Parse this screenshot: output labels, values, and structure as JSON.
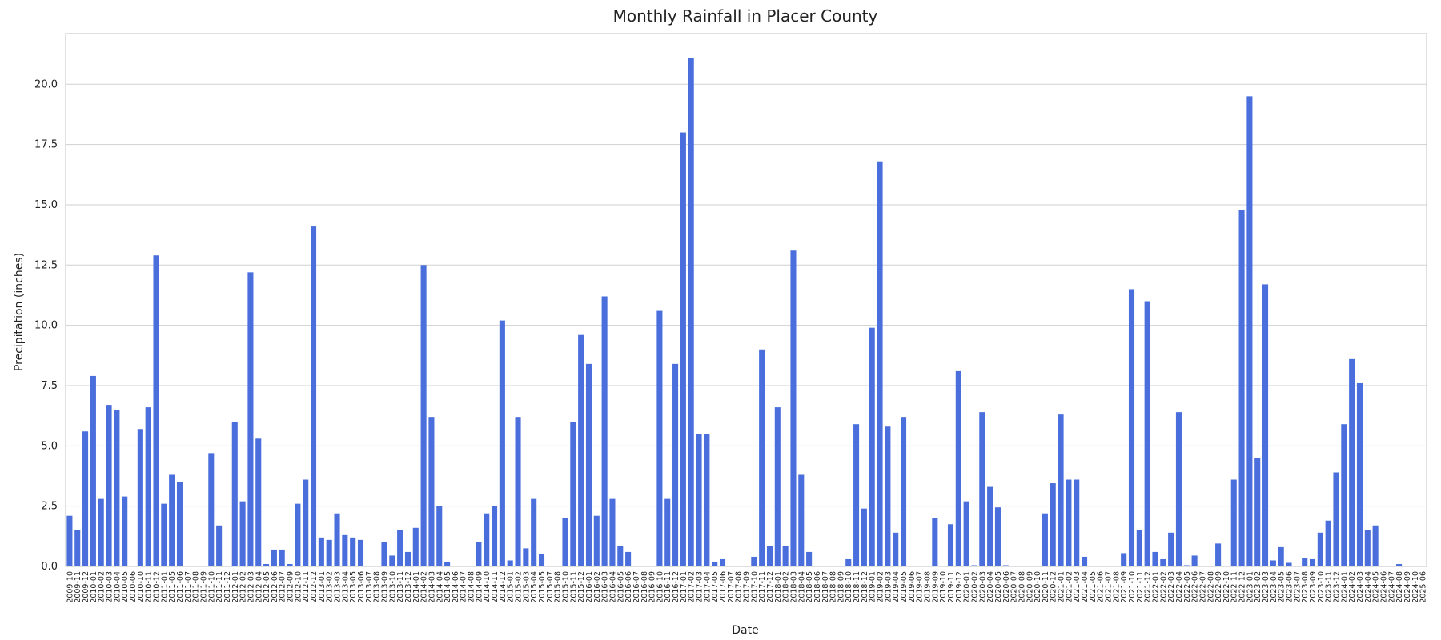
{
  "chart_data": {
    "type": "bar",
    "title": "Monthly Rainfall in Placer County",
    "xlabel": "Date",
    "ylabel": "Precipitation (inches)",
    "categories": [
      "2009-10",
      "2009-11",
      "2009-12",
      "2010-01",
      "2010-02",
      "2010-03",
      "2010-04",
      "2010-05",
      "2010-06",
      "2010-10",
      "2010-11",
      "2010-12",
      "2011-01",
      "2011-05",
      "2011-06",
      "2011-07",
      "2011-08",
      "2011-09",
      "2011-10",
      "2011-11",
      "2011-12",
      "2012-01",
      "2012-02",
      "2012-03",
      "2012-04",
      "2012-05",
      "2012-06",
      "2012-07",
      "2012-09",
      "2012-10",
      "2012-11",
      "2012-12",
      "2013-01",
      "2013-02",
      "2013-03",
      "2013-04",
      "2013-05",
      "2013-06",
      "2013-07",
      "2013-08",
      "2013-09",
      "2013-10",
      "2013-11",
      "2013-12",
      "2014-01",
      "2014-02",
      "2014-03",
      "2014-04",
      "2014-05",
      "2014-06",
      "2014-07",
      "2014-08",
      "2014-09",
      "2014-10",
      "2014-11",
      "2014-12",
      "2015-01",
      "2015-02",
      "2015-03",
      "2015-04",
      "2015-05",
      "2015-07",
      "2015-08",
      "2015-10",
      "2015-11",
      "2015-12",
      "2016-01",
      "2016-02",
      "2016-03",
      "2016-04",
      "2016-05",
      "2016-06",
      "2016-07",
      "2016-08",
      "2016-09",
      "2016-10",
      "2016-11",
      "2016-12",
      "2017-01",
      "2017-02",
      "2017-03",
      "2017-04",
      "2017-05",
      "2017-06",
      "2017-07",
      "2017-08",
      "2017-09",
      "2017-10",
      "2017-11",
      "2017-12",
      "2018-01",
      "2018-02",
      "2018-03",
      "2018-04",
      "2018-05",
      "2018-06",
      "2018-07",
      "2018-08",
      "2018-09",
      "2018-10",
      "2018-11",
      "2018-12",
      "2019-01",
      "2019-02",
      "2019-03",
      "2019-04",
      "2019-05",
      "2019-06",
      "2019-07",
      "2019-08",
      "2019-09",
      "2019-10",
      "2019-11",
      "2019-12",
      "2020-01",
      "2020-02",
      "2020-03",
      "2020-04",
      "2020-05",
      "2020-06",
      "2020-07",
      "2020-08",
      "2020-09",
      "2020-10",
      "2020-11",
      "2020-12",
      "2021-01",
      "2021-02",
      "2021-03",
      "2021-04",
      "2021-05",
      "2021-06",
      "2021-07",
      "2021-08",
      "2021-09",
      "2021-10",
      "2021-11",
      "2021-12",
      "2022-01",
      "2022-02",
      "2022-03",
      "2022-04",
      "2022-05",
      "2022-06",
      "2022-07",
      "2022-08",
      "2022-09",
      "2022-10",
      "2022-11",
      "2022-12",
      "2023-01",
      "2023-02",
      "2023-03",
      "2023-04",
      "2023-05",
      "2023-06",
      "2023-07",
      "2023-08",
      "2023-09",
      "2023-10",
      "2023-11",
      "2023-12",
      "2024-01",
      "2024-02",
      "2024-03",
      "2024-04",
      "2024-05",
      "2024-06",
      "2024-07",
      "2024-08",
      "2024-09",
      "2024-10",
      "2025-06"
    ],
    "values": [
      2.1,
      1.5,
      5.6,
      7.9,
      2.8,
      6.7,
      6.5,
      2.9,
      0,
      5.7,
      6.6,
      12.9,
      2.6,
      3.8,
      3.5,
      0,
      0,
      0,
      4.7,
      1.7,
      0,
      6.0,
      2.7,
      12.2,
      5.3,
      0.1,
      0.7,
      0.7,
      0.1,
      2.6,
      3.6,
      14.1,
      1.2,
      1.1,
      2.2,
      1.3,
      1.2,
      1.1,
      0,
      0,
      1.0,
      0.45,
      1.5,
      0.6,
      1.6,
      12.5,
      6.2,
      2.5,
      0.2,
      0,
      0,
      0,
      1.0,
      2.2,
      2.5,
      10.2,
      0.25,
      6.2,
      0.75,
      2.8,
      0.5,
      0,
      0,
      2.0,
      6.0,
      9.6,
      8.4,
      2.1,
      11.2,
      2.8,
      0.85,
      0.6,
      0,
      0,
      0,
      10.6,
      2.8,
      8.4,
      18.0,
      21.1,
      5.5,
      5.5,
      0.2,
      0.3,
      0,
      0,
      0,
      0.4,
      9.0,
      0.85,
      6.6,
      0.85,
      13.1,
      3.8,
      0.6,
      0,
      0,
      0,
      0,
      0.3,
      5.9,
      2.4,
      9.9,
      16.8,
      5.8,
      1.4,
      6.2,
      0,
      0,
      0,
      2.0,
      0,
      1.75,
      8.1,
      2.7,
      0.05,
      6.4,
      3.3,
      2.45,
      0.05,
      0,
      0,
      0,
      0,
      2.2,
      3.45,
      6.3,
      3.6,
      3.6,
      0.4,
      0,
      0,
      0,
      0,
      0.55,
      11.5,
      1.5,
      11.0,
      0.6,
      0.3,
      1.4,
      6.4,
      0.05,
      0.45,
      0,
      0,
      0.95,
      0,
      3.6,
      14.8,
      19.5,
      4.5,
      11.7,
      0.25,
      0.8,
      0.15,
      0,
      0.35,
      0.3,
      1.4,
      1.9,
      3.9,
      5.9,
      8.6,
      7.6,
      1.5,
      1.7,
      0,
      0,
      0.1,
      0,
      0,
      0
    ],
    "color": "#4a6fdc",
    "ylim": [
      0,
      22.1
    ],
    "yticks": [
      {
        "value": 0,
        "label": "0.0"
      },
      2.5,
      {
        "value": 5,
        "label": "5.0"
      },
      7.5,
      {
        "value": 10,
        "label": "10.0"
      },
      12.5,
      {
        "value": 15,
        "label": "15.0"
      },
      17.5,
      {
        "value": 20,
        "label": "20.0"
      }
    ],
    "grid": true
  }
}
